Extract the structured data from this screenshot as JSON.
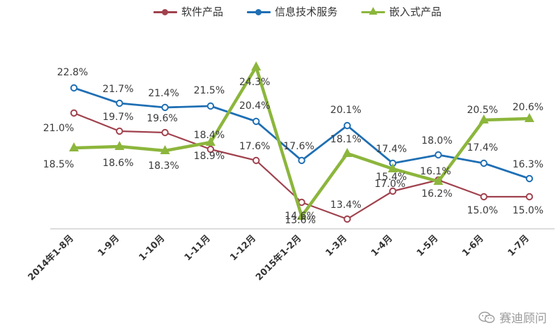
{
  "legend": {
    "software": "软件产品",
    "it_service": "信息技术服务",
    "embedded": "嵌入式产品"
  },
  "watermark": {
    "text": "赛迪顾问",
    "icon": "wechat-icon"
  },
  "colors": {
    "software": "#a0424e",
    "it_service": "#1f6fb4",
    "embedded": "#8cb63c"
  },
  "chart_data": {
    "type": "line",
    "categories": [
      "2014年1-8月",
      "1-9月",
      "1-10月",
      "1-11月",
      "1-12月",
      "2015年1-2月",
      "1-3月",
      "1-4月",
      "1-5月",
      "1-6月",
      "1-7月"
    ],
    "series": [
      {
        "name": "软件产品",
        "values": [
          21.0,
          19.7,
          19.6,
          18.4,
          17.6,
          14.6,
          13.4,
          15.4,
          16.2,
          15.0,
          15.0
        ],
        "labels": [
          "21.0%",
          "19.7%",
          "19.6%",
          "18.4%",
          "17.6%",
          "14.6%",
          "13.4%",
          "15.4%",
          "16.2%",
          "15.0%",
          "15.0%"
        ]
      },
      {
        "name": "信息技术服务",
        "values": [
          22.8,
          21.7,
          21.4,
          21.5,
          20.4,
          17.6,
          20.1,
          17.4,
          18.0,
          17.4,
          16.3
        ],
        "labels": [
          "22.8%",
          "21.7%",
          "21.4%",
          "21.5%",
          "20.4%",
          "17.6%",
          "20.1%",
          "17.4%",
          "18.0%",
          "17.4%",
          "16.3%"
        ]
      },
      {
        "name": "嵌入式产品",
        "values": [
          18.5,
          18.6,
          18.3,
          18.9,
          24.3,
          13.6,
          18.1,
          17.0,
          16.1,
          20.5,
          20.6
        ],
        "labels": [
          "18.5%",
          "18.6%",
          "18.3%",
          "18.9%",
          "24.3%",
          "13.6%",
          "18.1%",
          "17.0%",
          "16.1%",
          "20.5%",
          "20.6%"
        ]
      }
    ],
    "ylim": [
      13.0,
      24.3
    ],
    "grid": false,
    "legend_position": "top"
  }
}
